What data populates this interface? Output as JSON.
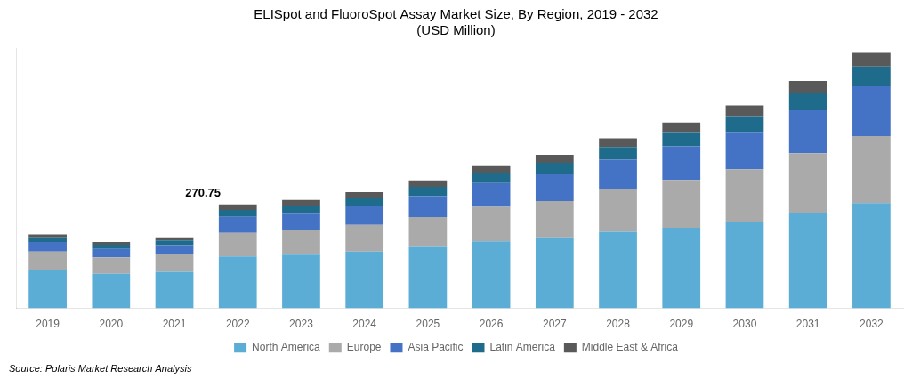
{
  "chart_data": {
    "type": "bar",
    "stacked": true,
    "title": "ELISpot and FluoroSpot Assay Market Size, By Region, 2019 - 2032",
    "subtitle": "(USD Million)",
    "source": "Source: Polaris Market Research Analysis",
    "categories": [
      "2019",
      "2020",
      "2021",
      "2022",
      "2023",
      "2024",
      "2025",
      "2026",
      "2027",
      "2028",
      "2029",
      "2030",
      "2031",
      "2032"
    ],
    "series": [
      {
        "name": "North America",
        "color": "#5BADD6",
        "values": [
          100,
          90,
          95,
          135,
          140,
          148,
          160,
          175,
          185,
          200,
          210,
          225,
          250,
          275
        ]
      },
      {
        "name": "Europe",
        "color": "#AAAAAA",
        "values": [
          48,
          43,
          46,
          62,
          65,
          70,
          78,
          90,
          95,
          110,
          125,
          138,
          155,
          175
        ]
      },
      {
        "name": "Asia Pacific",
        "color": "#4472C4",
        "values": [
          25,
          22,
          24,
          42,
          44,
          48,
          55,
          62,
          70,
          78,
          88,
          98,
          112,
          130
        ]
      },
      {
        "name": "Latin America",
        "color": "#1F6B8C",
        "values": [
          12,
          11,
          12,
          18,
          19,
          21,
          24,
          26,
          30,
          33,
          37,
          41,
          46,
          52
        ]
      },
      {
        "name": "Middle East & Africa",
        "color": "#595959",
        "values": [
          8,
          7,
          8,
          14,
          15,
          16,
          17,
          18,
          21,
          23,
          25,
          28,
          31,
          35
        ]
      }
    ],
    "ylim": [
      0,
      680
    ],
    "tick_labels": "x",
    "grid": false,
    "legend": "bottom",
    "annotations": [
      {
        "text": "270.75",
        "x": "2022"
      }
    ]
  }
}
